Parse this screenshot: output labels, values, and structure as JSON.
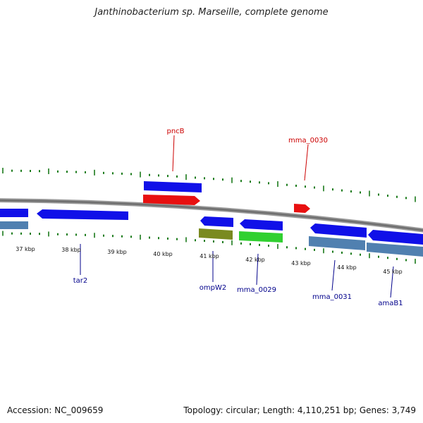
{
  "title": "Janthinobacterium sp. Marseille, complete genome",
  "footer": {
    "accession": "Accession: NC_009659",
    "summary": "Topology: circular; Length: 4,110,251 bp; Genes: 3,749"
  },
  "colors": {
    "forward_cds": "#1010e8",
    "reverse_cds": "#1010e8",
    "highlight": "#e81010",
    "olive": "#7a8a20",
    "green": "#30d030",
    "steelblue": "#5080b0",
    "tick": "#1a7a1a",
    "label_top": "#cc0000",
    "label_bottom": "#00008b"
  },
  "kbp_labels": [
    "37 kbp",
    "38 kbp",
    "39 kbp",
    "40 kbp",
    "41 kbp",
    "42 kbp",
    "43 kbp",
    "44 kbp",
    "45 kbp"
  ],
  "gene_labels": {
    "above": [
      "pncB",
      "mma_0030"
    ],
    "below": [
      "tar2",
      "ompW2",
      "mma_0029",
      "mma_0031",
      "amaB1"
    ]
  }
}
